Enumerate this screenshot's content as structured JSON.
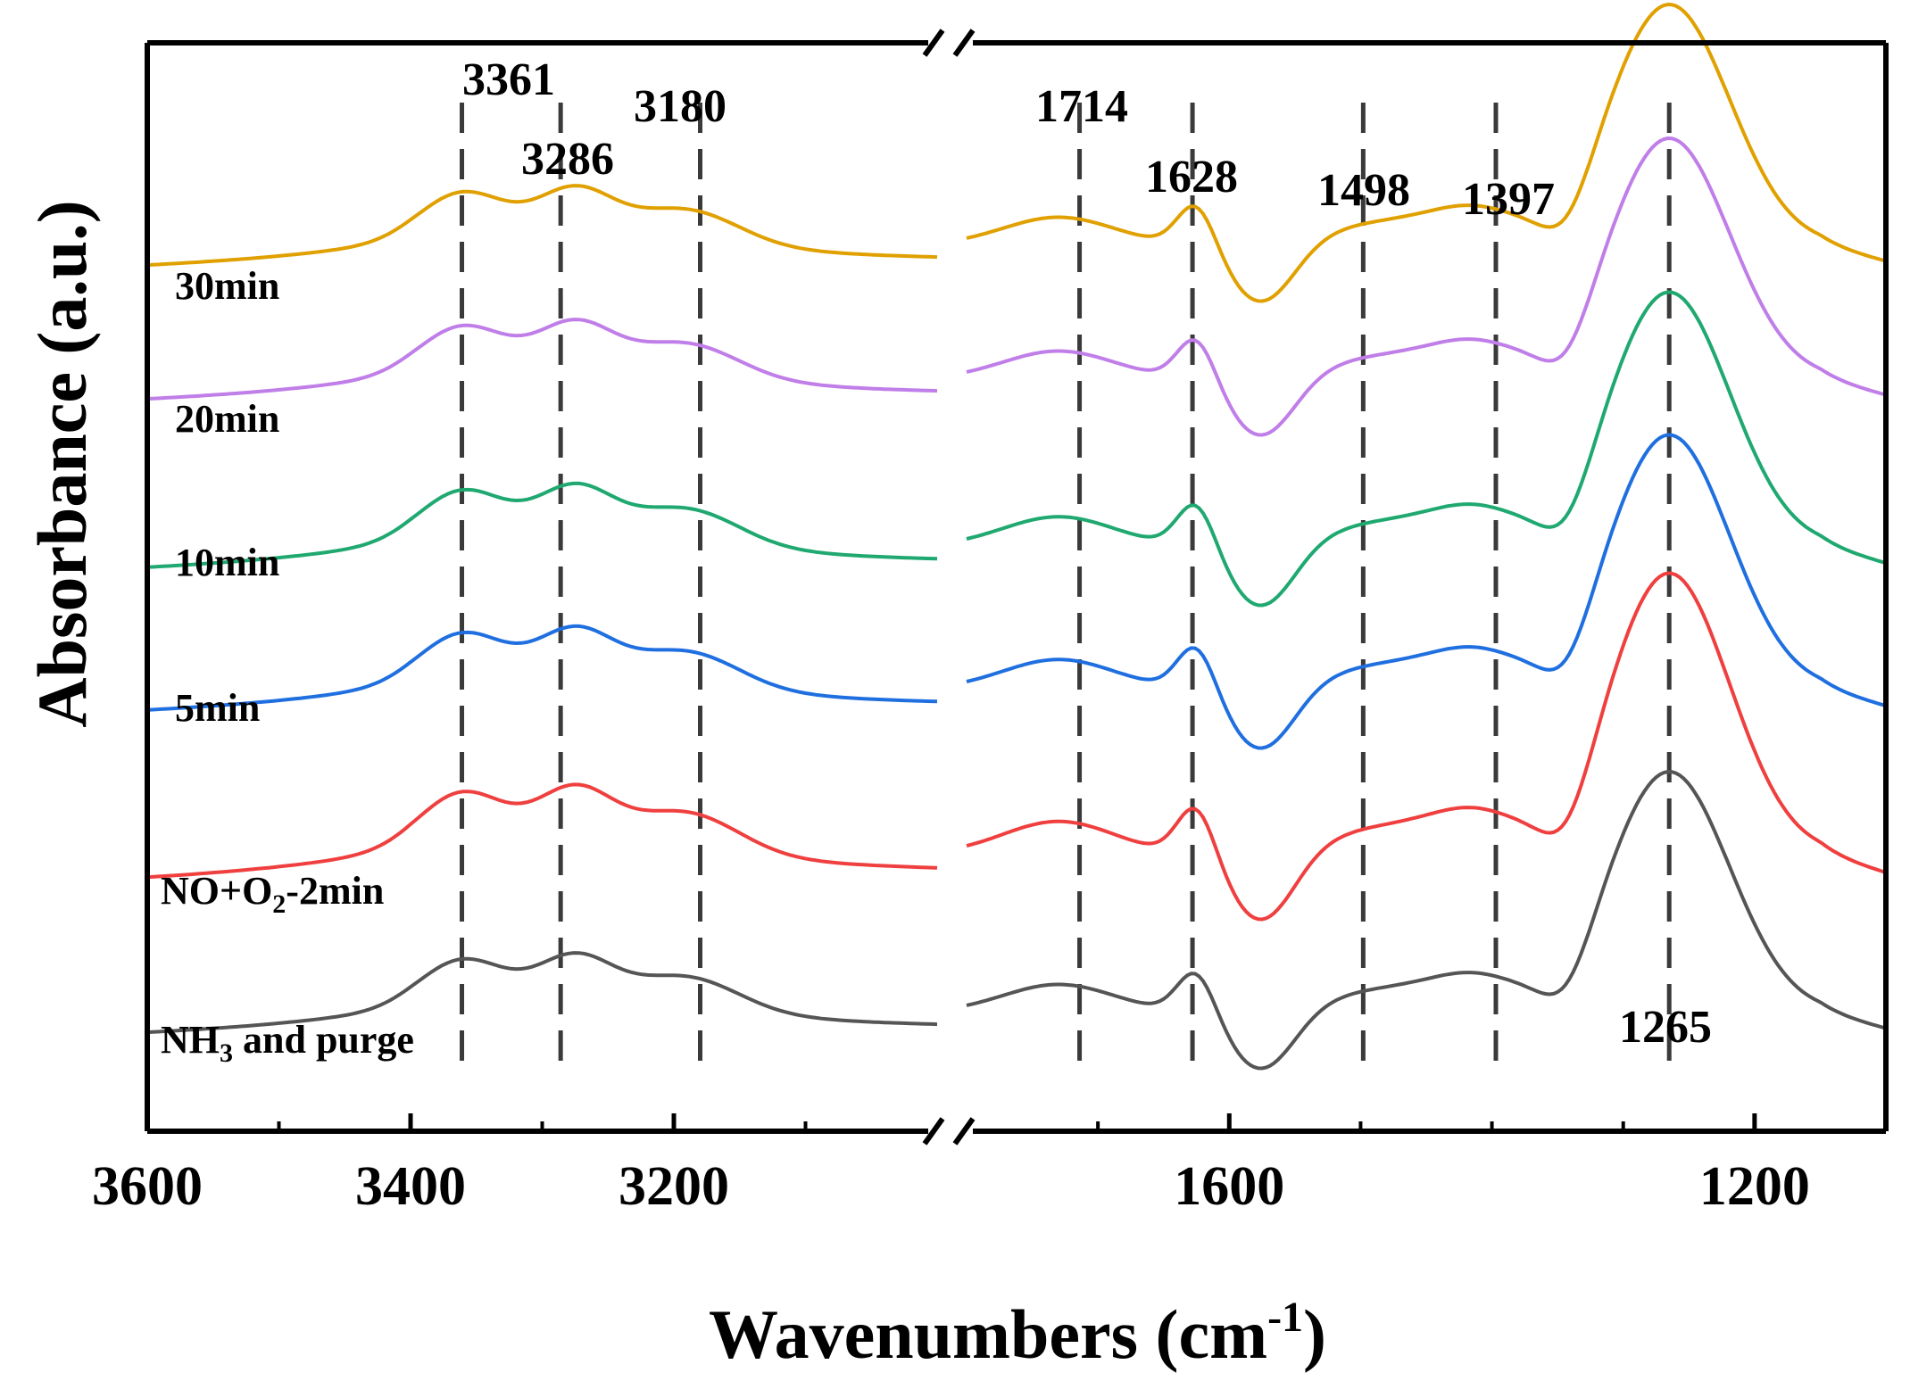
{
  "chart_data": {
    "type": "line",
    "xlabel": "Wavenumbers (cm",
    "xlabel_sup": "-1",
    "xlabel_close": ")",
    "ylabel": "Absorbance (a.u.)",
    "x_reversed": true,
    "x_break": true,
    "x_segments": [
      {
        "range": [
          3600,
          3000
        ],
        "ticks": [
          3600,
          3400,
          3200
        ],
        "labels": [
          "3600",
          "3400",
          "3200"
        ],
        "minor": [
          3500,
          3300,
          3100
        ]
      },
      {
        "range": [
          1800,
          1100
        ],
        "ticks": [
          1600,
          1200
        ],
        "labels": [
          "1600",
          "1200"
        ],
        "minor": [
          1700,
          1500,
          1400,
          1300
        ]
      }
    ],
    "peaks": [
      {
        "x": 3361,
        "label": "3361"
      },
      {
        "x": 3286,
        "label": "3286"
      },
      {
        "x": 3180,
        "label": "3180"
      },
      {
        "x": 1714,
        "label": "1714"
      },
      {
        "x": 1628,
        "label": "1628"
      },
      {
        "x": 1498,
        "label": "1498"
      },
      {
        "x": 1397,
        "label": "1397"
      },
      {
        "x": 1265,
        "label": "1265"
      }
    ],
    "series": [
      {
        "name": "NH",
        "sub": "3",
        "rest": " and purge",
        "color": "#555555",
        "offset": 0.0
      },
      {
        "name": "NO+O",
        "sub": "2",
        "rest": "-2min",
        "color": "#ef3f3f",
        "offset": 1.7
      },
      {
        "name": "5min",
        "sub": "",
        "rest": "",
        "color": "#1f6fe0",
        "offset": 3.6
      },
      {
        "name": "10min",
        "sub": "",
        "rest": "",
        "color": "#1fa870",
        "offset": 5.2
      },
      {
        "name": "20min",
        "sub": "",
        "rest": "",
        "color": "#c07ee8",
        "offset": 7.1
      },
      {
        "name": "30min",
        "sub": "",
        "rest": "",
        "color": "#e0a000",
        "offset": 8.6
      }
    ]
  }
}
